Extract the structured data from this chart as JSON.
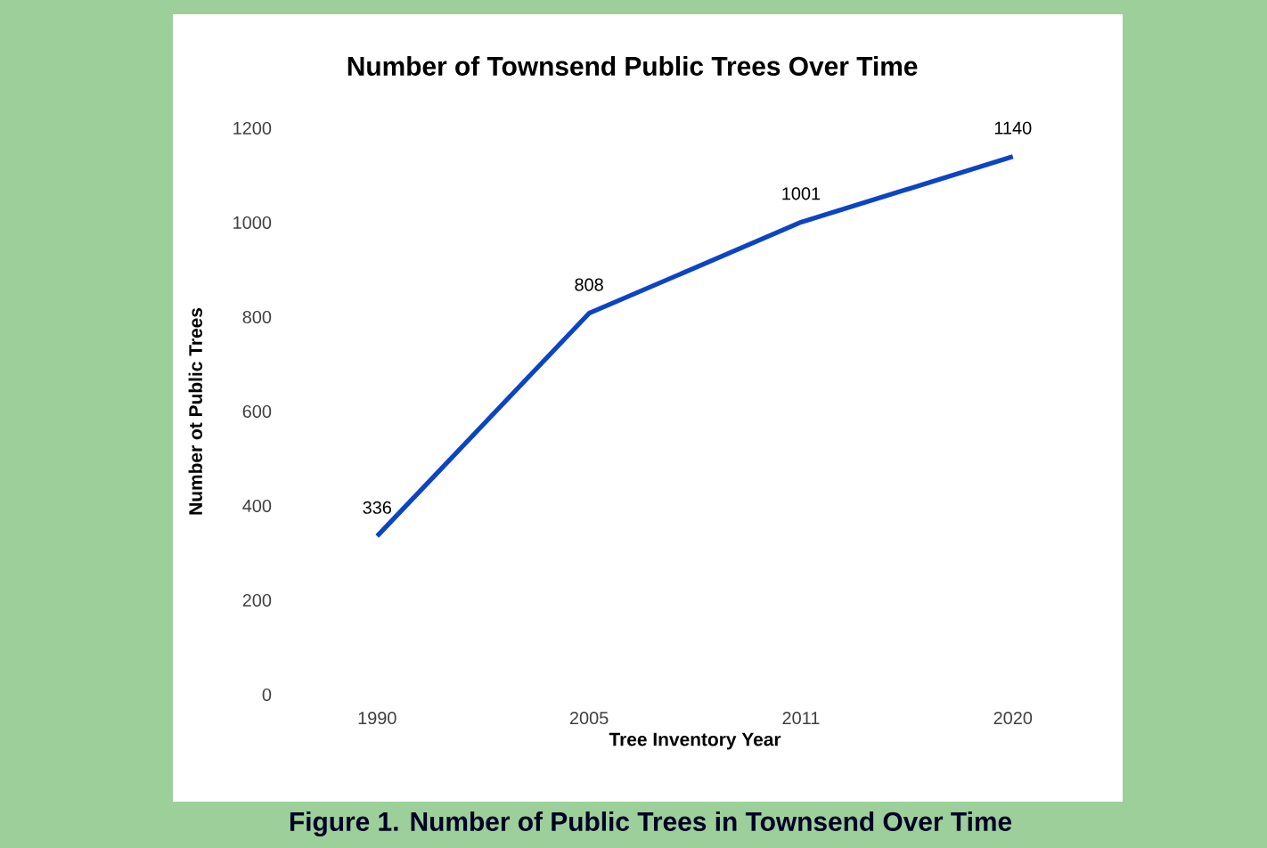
{
  "chart_data": {
    "type": "line",
    "title": "Number of Townsend Public Trees Over Time",
    "xlabel": "Tree Inventory Year",
    "ylabel": "Number ot Public Trees",
    "categories": [
      "1990",
      "2005",
      "2011",
      "2020"
    ],
    "series": [
      {
        "color": "#0b44c4",
        "values": [
          336,
          808,
          1001,
          1140
        ]
      }
    ],
    "ylim": [
      0,
      1200
    ],
    "yticks": [
      0,
      200,
      400,
      600,
      800,
      1000,
      1200
    ],
    "grid": false,
    "marker": "none",
    "line_style": "solid",
    "data_labels": true,
    "annotations": [
      "Figure 1. Number of Public Trees in Townsend Over Time"
    ]
  }
}
